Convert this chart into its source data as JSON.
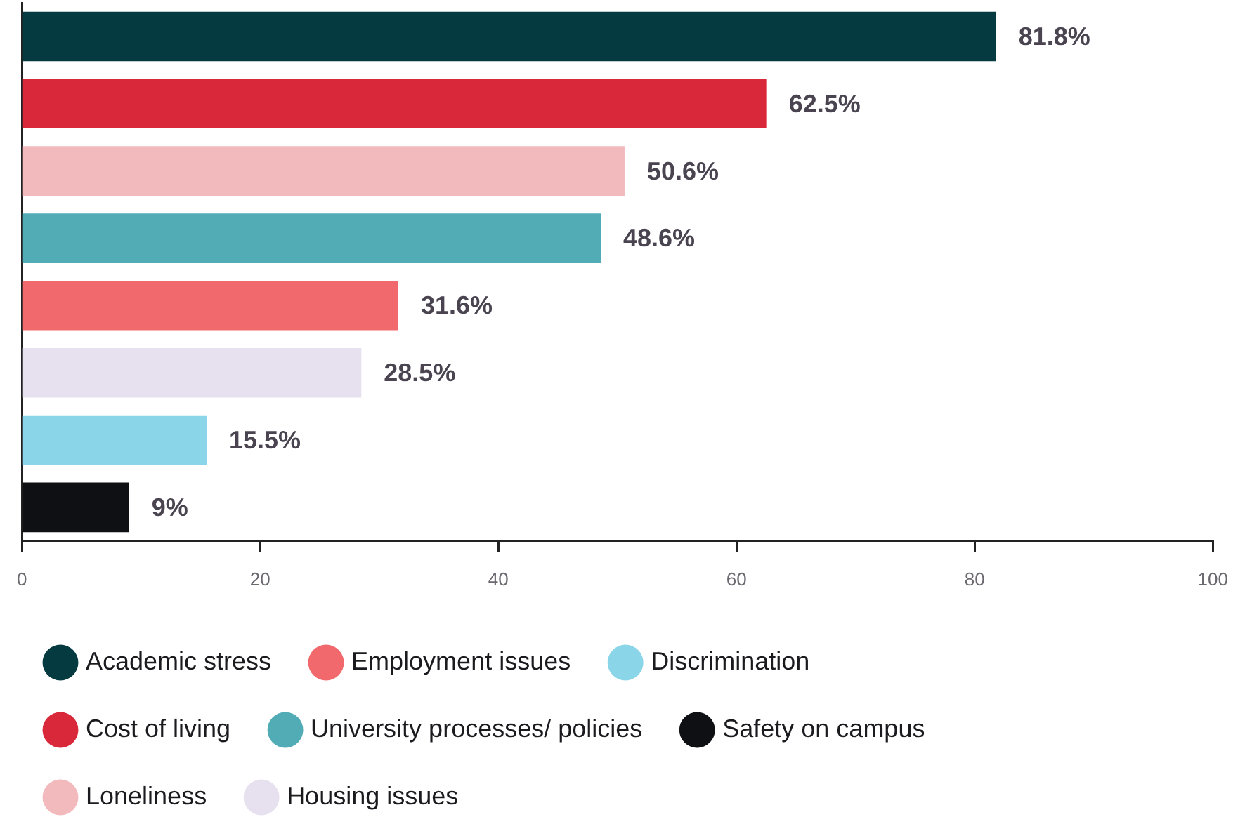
{
  "chart_data": {
    "type": "bar",
    "orientation": "horizontal",
    "categories": [
      null,
      null,
      null,
      null,
      null,
      null,
      null,
      null
    ],
    "series": [
      {
        "name": "Academic stress",
        "color": "#053a40",
        "values": [
          81.8,
          null,
          null,
          null,
          null,
          null,
          null,
          null
        ],
        "value_labels": [
          "81.8%",
          null,
          null,
          null,
          null,
          null,
          null,
          null
        ]
      },
      {
        "name": "Cost of living",
        "color": "#d9283a",
        "values": [
          null,
          62.5,
          null,
          null,
          null,
          null,
          null,
          null
        ],
        "value_labels": [
          null,
          "62.5%",
          null,
          null,
          null,
          null,
          null,
          null
        ]
      },
      {
        "name": "Loneliness",
        "color": "#f2babd",
        "values": [
          null,
          null,
          50.6,
          null,
          null,
          null,
          null,
          null
        ],
        "value_labels": [
          null,
          null,
          "50.6%",
          null,
          null,
          null,
          null,
          null
        ]
      },
      {
        "name": "Employment issues",
        "color": "#f1696c",
        "values": [
          null,
          null,
          null,
          null,
          31.6,
          null,
          null,
          null
        ],
        "value_labels": [
          null,
          null,
          null,
          null,
          "31.6%",
          null,
          null,
          null
        ]
      },
      {
        "name": "University processes/ policies",
        "color": "#52acb6",
        "values": [
          null,
          null,
          null,
          48.6,
          null,
          null,
          null,
          null
        ],
        "value_labels": [
          null,
          null,
          null,
          "48.6%",
          null,
          null,
          null,
          null
        ]
      },
      {
        "name": "Housing issues",
        "color": "#e7e1ef",
        "values": [
          null,
          null,
          null,
          null,
          null,
          28.5,
          null,
          null
        ],
        "value_labels": [
          null,
          null,
          null,
          null,
          null,
          "28.5%",
          null,
          null
        ]
      },
      {
        "name": "Discrimination",
        "color": "#8ad5e8",
        "values": [
          null,
          null,
          null,
          null,
          null,
          null,
          15.5,
          null
        ],
        "value_labels": [
          null,
          null,
          null,
          null,
          null,
          null,
          "15.5%",
          null
        ]
      },
      {
        "name": "Safety on campus",
        "color": "#0f1014",
        "values": [
          null,
          null,
          null,
          null,
          null,
          null,
          null,
          9
        ],
        "value_labels": [
          null,
          null,
          null,
          null,
          null,
          null,
          null,
          "9%"
        ]
      }
    ],
    "xlim": [
      0,
      100
    ],
    "xticks": [
      0,
      20,
      40,
      60,
      80,
      100
    ],
    "grid": false,
    "legend": "bottom",
    "tick_labels": "x"
  }
}
